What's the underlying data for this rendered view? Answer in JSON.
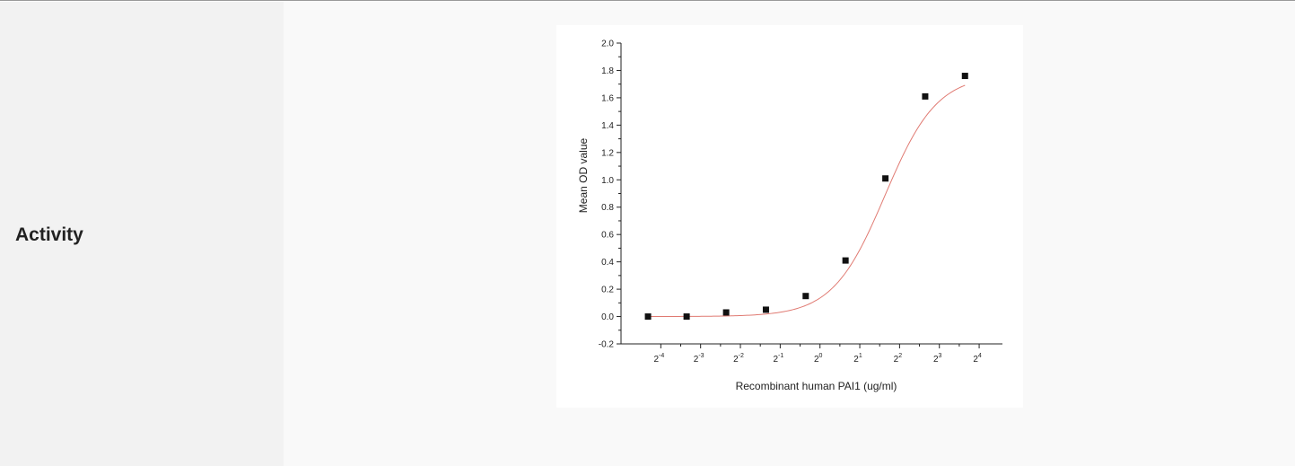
{
  "row": {
    "label": "Activity"
  },
  "chart_data": {
    "type": "scatter",
    "title": "",
    "xlabel": "Recombinant human PAI1 (ug/ml)",
    "ylabel": "Mean OD value",
    "x_scale": "log2",
    "x_ticks": [
      {
        "value": 0.0625,
        "base": "2",
        "exp": "-4"
      },
      {
        "value": 0.125,
        "base": "2",
        "exp": "-3"
      },
      {
        "value": 0.25,
        "base": "2",
        "exp": "-2"
      },
      {
        "value": 0.5,
        "base": "2",
        "exp": "-1"
      },
      {
        "value": 1,
        "base": "2",
        "exp": "0"
      },
      {
        "value": 2,
        "base": "2",
        "exp": "1"
      },
      {
        "value": 4,
        "base": "2",
        "exp": "2"
      },
      {
        "value": 8,
        "base": "2",
        "exp": "3"
      },
      {
        "value": 16,
        "base": "2",
        "exp": "4"
      }
    ],
    "xlim": [
      0.03125,
      24
    ],
    "y_ticks": [
      "-0.2",
      "0.0",
      "0.2",
      "0.4",
      "0.6",
      "0.8",
      "1.0",
      "1.2",
      "1.4",
      "1.6",
      "1.8",
      "2.0"
    ],
    "ylim": [
      -0.2,
      2.0
    ],
    "x": [
      0.05,
      0.098,
      0.195,
      0.39,
      0.78,
      1.56,
      3.125,
      6.25,
      12.5
    ],
    "y": [
      0.0,
      0.0,
      0.03,
      0.05,
      0.15,
      0.41,
      1.01,
      1.61,
      1.76
    ],
    "fit": {
      "bottom": 0.0,
      "top": 1.77,
      "ec50": 3.1,
      "hill": 2.2
    },
    "marker_color": "#111111",
    "fit_color": "#e07a72",
    "grid": false,
    "legend": "none"
  }
}
